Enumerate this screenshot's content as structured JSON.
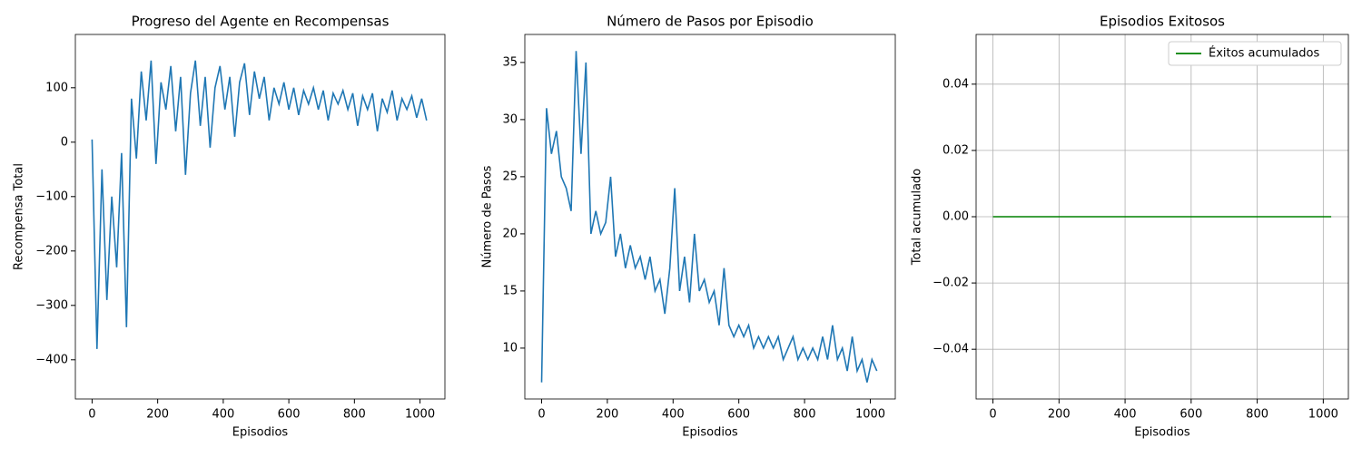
{
  "chart_data": [
    {
      "type": "line",
      "title": "Progreso del Agente en Recompensas",
      "xlabel": "Episodios",
      "ylabel": "Recompensa Total",
      "xlim": [
        -51,
        1076
      ],
      "ylim": [
        -472,
        198
      ],
      "xticks": [
        0,
        200,
        400,
        600,
        800,
        1000
      ],
      "yticks": [
        {
          "value": -400,
          "label": "−400"
        },
        {
          "value": -300,
          "label": "−300"
        },
        {
          "value": -200,
          "label": "−200"
        },
        {
          "value": -100,
          "label": "−100"
        },
        0,
        100
      ],
      "grid": false,
      "x": [
        0,
        15,
        30,
        45,
        60,
        75,
        90,
        105,
        120,
        135,
        150,
        165,
        180,
        195,
        210,
        225,
        240,
        255,
        270,
        285,
        300,
        315,
        330,
        345,
        360,
        375,
        390,
        405,
        420,
        435,
        450,
        465,
        480,
        495,
        510,
        525,
        540,
        555,
        570,
        585,
        600,
        615,
        630,
        645,
        660,
        675,
        690,
        705,
        720,
        735,
        750,
        765,
        780,
        795,
        810,
        825,
        840,
        855,
        870,
        885,
        900,
        915,
        930,
        945,
        960,
        975,
        990,
        1005,
        1020
      ],
      "series": [
        {
          "color": "#1f77b4",
          "values": [
            5,
            -380,
            -50,
            -290,
            -100,
            -230,
            -20,
            -340,
            80,
            -30,
            130,
            40,
            150,
            -40,
            110,
            60,
            140,
            20,
            120,
            -60,
            90,
            150,
            30,
            120,
            -10,
            100,
            140,
            60,
            120,
            10,
            110,
            145,
            50,
            130,
            80,
            120,
            40,
            100,
            70,
            110,
            60,
            100,
            50,
            95,
            70,
            100,
            60,
            95,
            40,
            90,
            70,
            95,
            60,
            90,
            30,
            85,
            60,
            90,
            20,
            80,
            55,
            95,
            40,
            80,
            60,
            85,
            45,
            80,
            40
          ]
        }
      ]
    },
    {
      "type": "line",
      "title": "Número de Pasos por Episodio",
      "xlabel": "Episodios",
      "ylabel": "Número de Pasos",
      "xlim": [
        -51,
        1076
      ],
      "ylim": [
        5.55,
        37.45
      ],
      "xticks": [
        0,
        200,
        400,
        600,
        800,
        1000
      ],
      "yticks": [
        10,
        15,
        20,
        25,
        30,
        35
      ],
      "grid": false,
      "x": [
        0,
        15,
        30,
        45,
        60,
        75,
        90,
        105,
        120,
        135,
        150,
        165,
        180,
        195,
        210,
        225,
        240,
        255,
        270,
        285,
        300,
        315,
        330,
        345,
        360,
        375,
        390,
        405,
        420,
        435,
        450,
        465,
        480,
        495,
        510,
        525,
        540,
        555,
        570,
        585,
        600,
        615,
        630,
        645,
        660,
        675,
        690,
        705,
        720,
        735,
        750,
        765,
        780,
        795,
        810,
        825,
        840,
        855,
        870,
        885,
        900,
        915,
        930,
        945,
        960,
        975,
        990,
        1005,
        1020
      ],
      "series": [
        {
          "color": "#1f77b4",
          "values": [
            7,
            31,
            27,
            29,
            25,
            24,
            22,
            36,
            27,
            35,
            20,
            22,
            20,
            21,
            25,
            18,
            20,
            17,
            19,
            17,
            18,
            16,
            18,
            15,
            16,
            13,
            17,
            24,
            15,
            18,
            14,
            20,
            15,
            16,
            14,
            15,
            12,
            17,
            12,
            11,
            12,
            11,
            12,
            10,
            11,
            10,
            11,
            10,
            11,
            9,
            10,
            11,
            9,
            10,
            9,
            10,
            9,
            11,
            9,
            12,
            9,
            10,
            8,
            11,
            8,
            9,
            7,
            9,
            8
          ]
        }
      ]
    },
    {
      "type": "line",
      "title": "Episodios Exitosos",
      "xlabel": "Episodios",
      "ylabel": "Total acumulado",
      "xlim": [
        -51,
        1076
      ],
      "ylim": [
        -0.055,
        0.055
      ],
      "xticks": [
        0,
        200,
        400,
        600,
        800,
        1000
      ],
      "yticks": [
        {
          "value": -0.04,
          "label": "−0.04"
        },
        {
          "value": -0.02,
          "label": "−0.02"
        },
        {
          "value": 0,
          "label": "0.00"
        },
        0.02,
        0.04
      ],
      "grid": true,
      "legend": "upper right",
      "x": [
        0,
        1024
      ],
      "series": [
        {
          "name": "Éxitos acumulados",
          "color": "#008000",
          "values": [
            0,
            0
          ]
        }
      ]
    }
  ]
}
